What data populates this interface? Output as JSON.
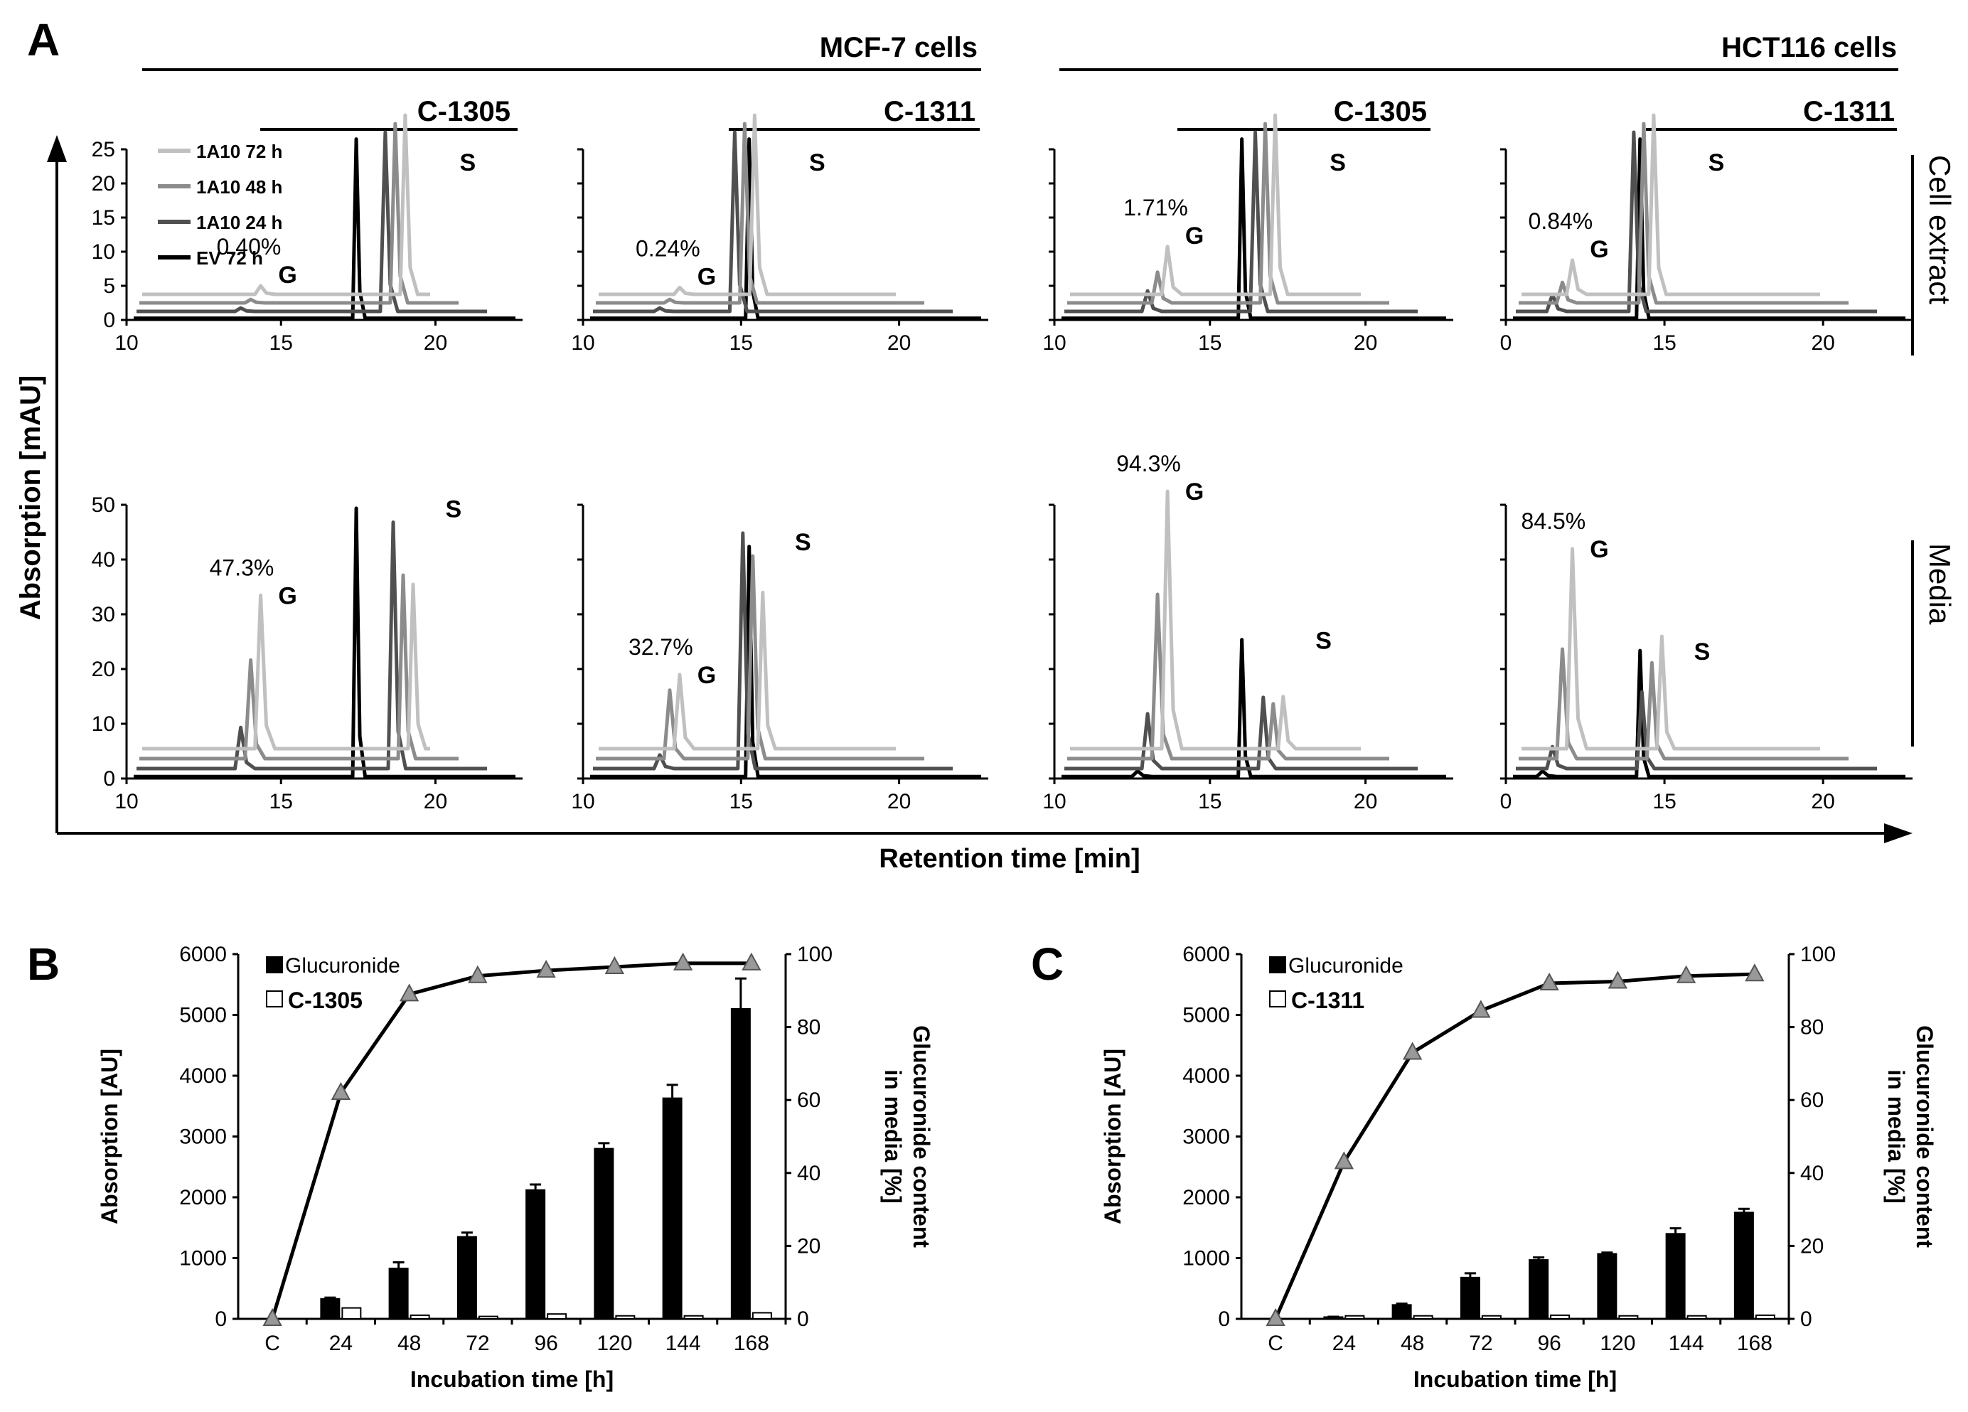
{
  "panels": {
    "A": "A",
    "B": "B",
    "C": "C"
  },
  "panel_a": {
    "cell_lines": [
      "MCF-7 cells",
      "HCT116 cells"
    ],
    "compounds": [
      "C-1305",
      "C-1311",
      "C-1305",
      "C-1311"
    ],
    "row_labels": [
      "Cell extract",
      "Media"
    ],
    "ylabel": "Absorption [mAU]",
    "xlabel": "Retention time [min]",
    "legend": [
      "1A10 72 h",
      "1A10 48 h",
      "1A10 24 h",
      "EV 72 h"
    ],
    "legend_colors": [
      "#c0c0c0",
      "#8c8c8c",
      "#505050",
      "#000000"
    ],
    "peak_g": "G",
    "peak_s": "S",
    "top_yticks": [
      "0",
      "5",
      "10",
      "15",
      "20",
      "25"
    ],
    "bottom_yticks": [
      "0",
      "10",
      "20",
      "30",
      "40",
      "50"
    ],
    "xticks": [
      [
        "10",
        "15",
        "20"
      ],
      [
        "10",
        "15",
        "20"
      ],
      [
        "10",
        "15",
        "20"
      ],
      [
        "0",
        "15",
        "20"
      ]
    ],
    "percents_top": [
      "0.40%",
      "0.24%",
      "1.71%",
      "0.84%"
    ],
    "percents_bottom": [
      "47.3%",
      "32.7%",
      "94.3%",
      "84.5%"
    ]
  },
  "chart_data": [
    {
      "type": "bar",
      "panel": "B",
      "categories": [
        "C",
        "24",
        "48",
        "72",
        "96",
        "120",
        "144",
        "168"
      ],
      "xlabel": "Incubation time [h]",
      "ylabel": "Absorption [AU]",
      "y2label": [
        "Glucuronide content",
        "in media [%]"
      ],
      "ylim": [
        0,
        6000
      ],
      "y2lim": [
        0,
        100
      ],
      "yticks": [
        "0",
        "1000",
        "2000",
        "3000",
        "4000",
        "5000",
        "6000"
      ],
      "y2ticks": [
        "0",
        "20",
        "40",
        "60",
        "80",
        "100"
      ],
      "series": [
        {
          "name": "Glucuronide",
          "values": [
            0,
            330,
            830,
            1350,
            2120,
            2800,
            3630,
            5100
          ],
          "errors": [
            0,
            20,
            100,
            70,
            90,
            90,
            220,
            500
          ],
          "color": "#000000"
        },
        {
          "name": "C-1305",
          "values": [
            0,
            180,
            60,
            40,
            80,
            50,
            50,
            100
          ],
          "color": "#ffffff"
        }
      ],
      "line": {
        "values": [
          0,
          62,
          89,
          94,
          95.5,
          96.5,
          97.5,
          97.5
        ]
      }
    },
    {
      "type": "bar",
      "panel": "C",
      "categories": [
        "C",
        "24",
        "48",
        "72",
        "96",
        "120",
        "144",
        "168"
      ],
      "xlabel": "Incubation time [h]",
      "ylabel": "Absorption [AU]",
      "y2label": [
        "Glucuronide content",
        "in media [%]"
      ],
      "ylim": [
        0,
        6000
      ],
      "y2lim": [
        0,
        100
      ],
      "yticks": [
        "0",
        "1000",
        "2000",
        "3000",
        "4000",
        "5000",
        "6000"
      ],
      "y2ticks": [
        "0",
        "20",
        "40",
        "60",
        "80",
        "100"
      ],
      "series": [
        {
          "name": "Glucuronide",
          "values": [
            0,
            30,
            230,
            680,
            970,
            1070,
            1400,
            1750
          ],
          "errors": [
            0,
            5,
            20,
            70,
            40,
            20,
            90,
            60
          ],
          "color": "#000000"
        },
        {
          "name": "C-1311",
          "values": [
            0,
            50,
            50,
            50,
            60,
            50,
            50,
            60
          ],
          "color": "#ffffff"
        }
      ],
      "line": {
        "values": [
          0,
          43,
          73,
          84.5,
          92,
          92.5,
          94,
          94.5
        ]
      }
    }
  ]
}
